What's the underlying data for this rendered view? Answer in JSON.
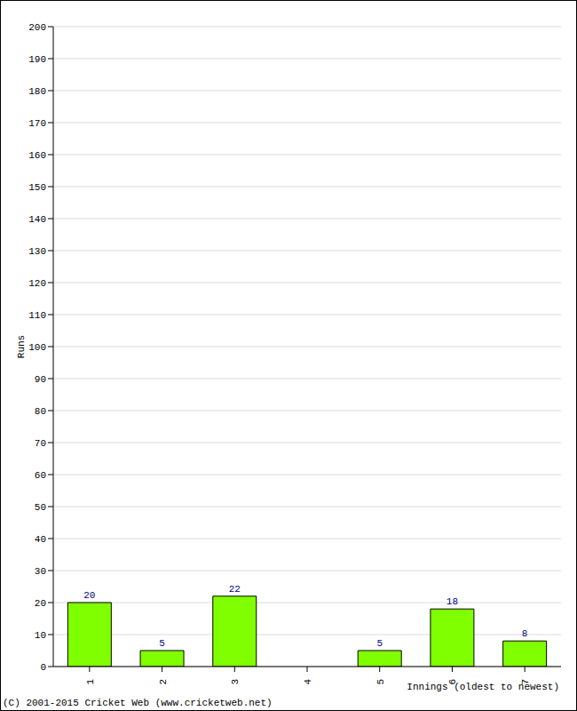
{
  "chart_data": {
    "type": "bar",
    "categories": [
      "1",
      "2",
      "3",
      "4",
      "5",
      "6",
      "7"
    ],
    "values": [
      20,
      5,
      22,
      0,
      5,
      18,
      8
    ],
    "color": "#80ff00",
    "ylim": [
      0,
      200
    ],
    "yticks": [
      0,
      10,
      20,
      30,
      40,
      50,
      60,
      70,
      80,
      90,
      100,
      110,
      120,
      130,
      140,
      150,
      160,
      170,
      180,
      190,
      200
    ],
    "grid": true,
    "data_labels": true,
    "y_label": "Runs",
    "x_label": "Innings (oldest to newest)",
    "annotations": [
      "(C) 2001-2015 Cricket Web (www.cricketweb.net)"
    ]
  }
}
